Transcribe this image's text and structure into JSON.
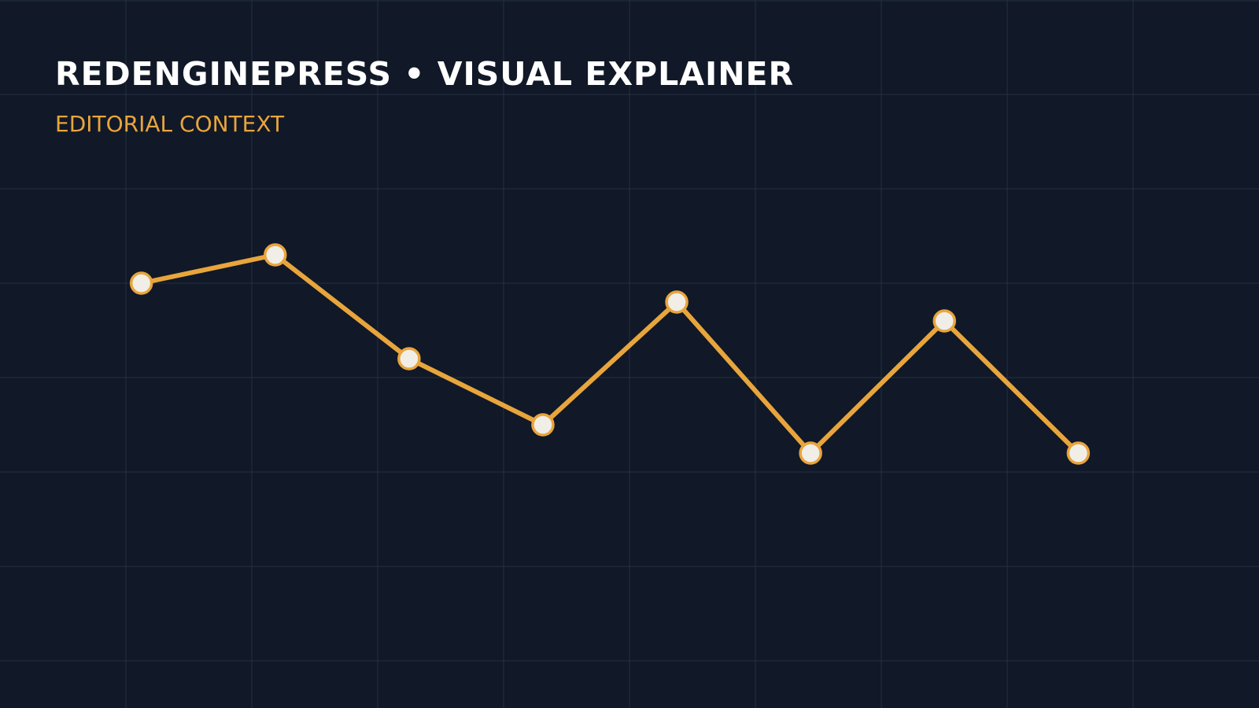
{
  "chart_data": {
    "type": "line",
    "title": "REDENGINEPRESS • VISUAL EXPLAINER",
    "subtitle": "EDITORIAL CONTEXT",
    "categories": [
      null,
      null,
      null,
      null,
      null,
      null,
      null,
      null
    ],
    "values": [
      4.0,
      4.3,
      3.2,
      2.5,
      3.8,
      2.2,
      3.6,
      2.2
    ],
    "color": "#e8a53c",
    "ylim": [
      0,
      6
    ]
  }
}
